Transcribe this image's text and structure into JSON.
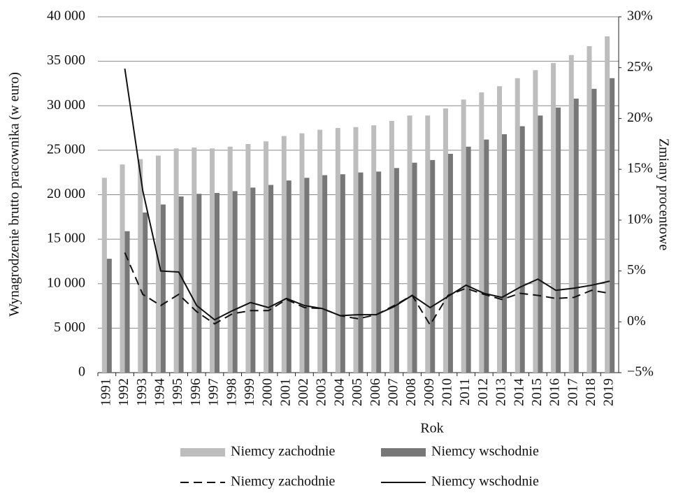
{
  "chart_data": {
    "type": "bar",
    "y_label": "Wynagrodzenie brutto pracownika (w euro)",
    "y2_label": "Zmiany procentowe",
    "x_label": "Rok",
    "categories": [
      "1991",
      "1992",
      "1993",
      "1994",
      "1995",
      "1996",
      "1997",
      "1998",
      "1999",
      "2000",
      "2001",
      "2002",
      "2003",
      "2004",
      "2005",
      "2006",
      "2007",
      "2008",
      "2009",
      "2010",
      "2011",
      "2012",
      "2013",
      "2014",
      "2015",
      "2016",
      "2017",
      "2018",
      "2019"
    ],
    "series": [
      {
        "name": "Niemcy zachodnie",
        "type": "bar",
        "color": "#bdbdbd",
        "values": [
          21900,
          23400,
          24000,
          24400,
          25200,
          25300,
          25200,
          25400,
          25700,
          26000,
          26600,
          26900,
          27300,
          27500,
          27600,
          27800,
          28300,
          28900,
          28900,
          29700,
          30700,
          31500,
          32200,
          33100,
          34000,
          34800,
          35700,
          36700,
          37800
        ]
      },
      {
        "name": "Niemcy wschodnie",
        "type": "bar",
        "color": "#777777",
        "values": [
          12800,
          15900,
          18000,
          18900,
          19800,
          20100,
          20200,
          20400,
          20800,
          21100,
          21600,
          21900,
          22200,
          22300,
          22500,
          22600,
          23000,
          23600,
          23900,
          24600,
          25400,
          26200,
          26800,
          27700,
          28900,
          29800,
          30800,
          31900,
          33100
        ]
      },
      {
        "name": "Niemcy zachodnie",
        "type": "line",
        "dashed": true,
        "axis": "y2",
        "color": "#111111",
        "values": [
          null,
          6.8,
          2.7,
          1.6,
          2.7,
          1.0,
          -0.2,
          0.8,
          1.1,
          1.1,
          2.2,
          1.4,
          1.3,
          0.6,
          0.3,
          0.7,
          1.6,
          2.6,
          -0.3,
          2.6,
          3.3,
          2.7,
          2.2,
          2.8,
          2.6,
          2.3,
          2.4,
          3.1,
          2.8
        ]
      },
      {
        "name": "Niemcy wschodnie",
        "type": "line",
        "dashed": false,
        "axis": "y2",
        "color": "#111111",
        "values": [
          null,
          24.9,
          12.9,
          5.0,
          4.9,
          1.6,
          0.2,
          1.1,
          1.9,
          1.4,
          2.3,
          1.6,
          1.3,
          0.6,
          0.7,
          0.7,
          1.5,
          2.6,
          1.4,
          2.5,
          3.6,
          2.8,
          2.4,
          3.4,
          4.2,
          3.1,
          3.3,
          3.6,
          4.0
        ]
      }
    ],
    "ylim": [
      0,
      40000
    ],
    "yticks": [
      0,
      {
        "value": 5000,
        "label": "5 000"
      },
      {
        "value": 10000,
        "label": "10 000"
      },
      {
        "value": 15000,
        "label": "15 000"
      },
      {
        "value": 20000,
        "label": "20 000"
      },
      {
        "value": 25000,
        "label": "25 000"
      },
      {
        "value": 30000,
        "label": "30 000"
      },
      {
        "value": 35000,
        "label": "35 000"
      },
      {
        "value": 40000,
        "label": "40 000"
      }
    ],
    "y2lim": [
      -5,
      30
    ],
    "y2ticks": [
      {
        "value": -5,
        "label": "−5%"
      },
      {
        "value": 0,
        "label": "0%"
      },
      {
        "value": 5,
        "label": "5%"
      },
      {
        "value": 10,
        "label": "10%"
      },
      {
        "value": 15,
        "label": "15%"
      },
      {
        "value": 20,
        "label": "20%"
      },
      {
        "value": 25,
        "label": "25%"
      },
      {
        "value": 30,
        "label": "30%"
      }
    ],
    "grid": true
  }
}
